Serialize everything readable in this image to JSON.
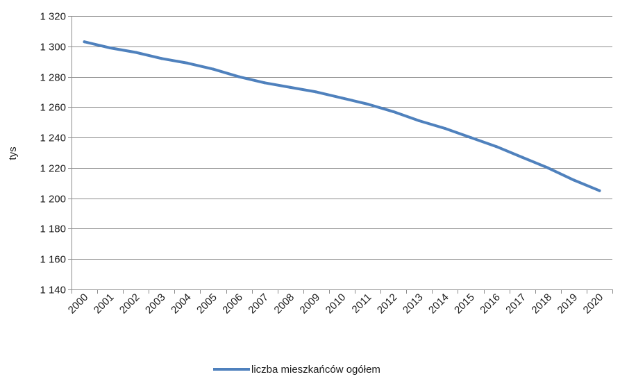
{
  "chart_data": {
    "type": "line",
    "title": "",
    "xlabel": "",
    "ylabel": "tys",
    "ylim": [
      1140,
      1320
    ],
    "yticks": [
      1140,
      1160,
      1180,
      1200,
      1220,
      1240,
      1260,
      1280,
      1300,
      1320
    ],
    "ytick_labels": [
      "1 140",
      "1 160",
      "1 180",
      "1 200",
      "1 220",
      "1 240",
      "1 260",
      "1 280",
      "1 300",
      "1 320"
    ],
    "categories": [
      "2000",
      "2001",
      "2002",
      "2003",
      "2004",
      "2005",
      "2006",
      "2007",
      "2008",
      "2009",
      "2010",
      "2011",
      "2012",
      "2013",
      "2014",
      "2015",
      "2016",
      "2017",
      "2018",
      "2019",
      "2020"
    ],
    "grid": true,
    "legend_position": "bottom",
    "series": [
      {
        "name": "liczba mieszkańców ogółem",
        "color": "#4f81bd",
        "values": [
          1303,
          1299,
          1296,
          1292,
          1289,
          1285,
          1280,
          1276,
          1273,
          1270,
          1266,
          1262,
          1257,
          1251,
          1246,
          1240,
          1234,
          1227,
          1220,
          1212,
          1205
        ]
      }
    ]
  }
}
